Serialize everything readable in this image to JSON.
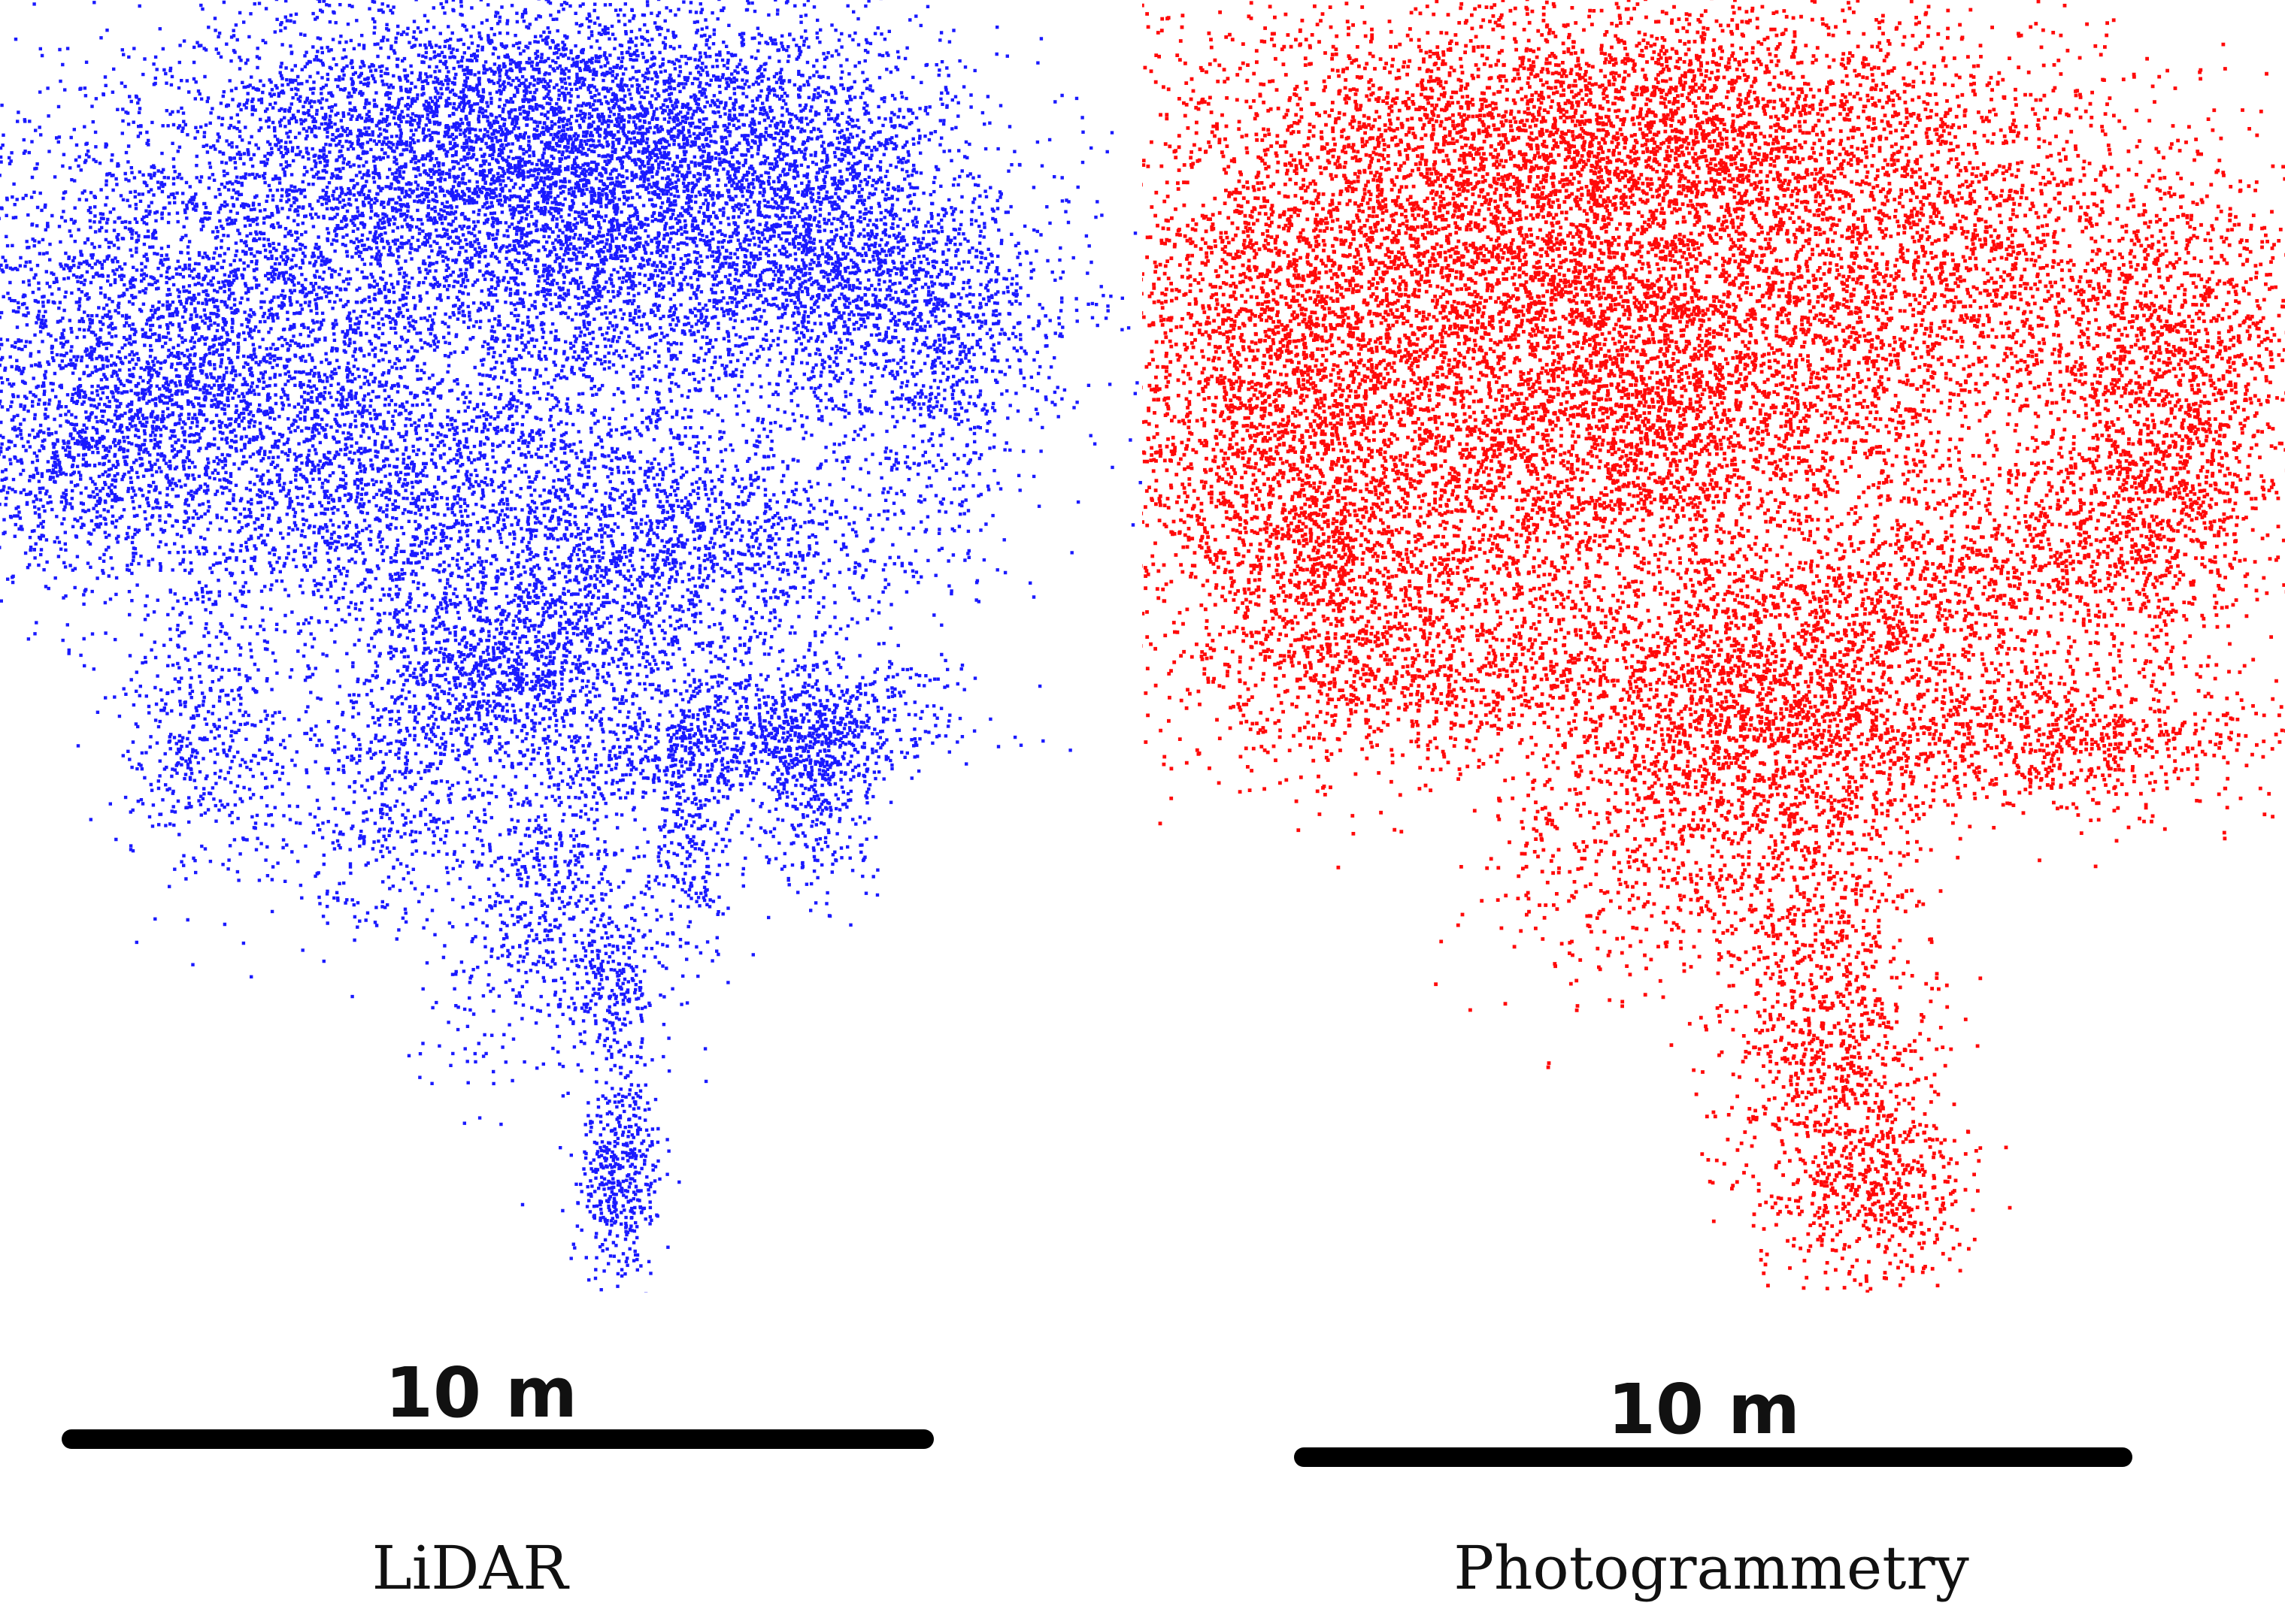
{
  "panels": [
    {
      "id": "lidar",
      "caption": "LiDAR",
      "scale_label": "10 m",
      "point_color": "#1a1aff"
    },
    {
      "id": "photogrammetry",
      "caption": "Photogrammetry",
      "scale_label": "10 m",
      "point_color": "#ff0a0a"
    }
  ]
}
